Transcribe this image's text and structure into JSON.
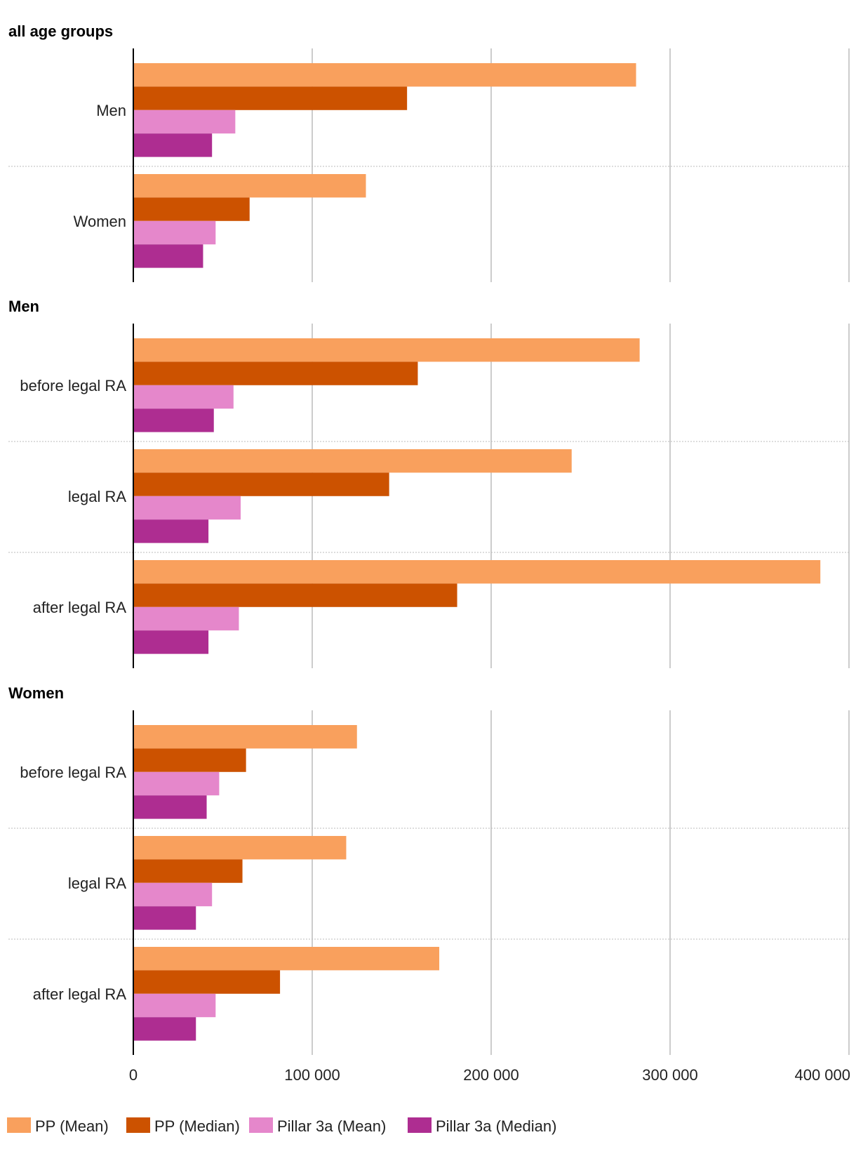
{
  "chart_data": {
    "type": "bar",
    "orientation": "horizontal",
    "xlim": [
      0,
      400000
    ],
    "x_ticks": [
      "0",
      "100 000",
      "200 000",
      "300 000",
      "400 000"
    ],
    "x_tick_values": [
      0,
      100000,
      200000,
      300000,
      400000
    ],
    "grid": true,
    "legend_placement": "bottom-left",
    "series": [
      {
        "name": "PP (Mean)",
        "color": "#F9A05D"
      },
      {
        "name": "PP (Median)",
        "color": "#CC5200"
      },
      {
        "name": "Pillar 3a (Mean)",
        "color": "#E587CB"
      },
      {
        "name": "Pillar 3a (Median)",
        "color": "#AE2D91"
      }
    ],
    "panels": [
      {
        "title": "all age groups",
        "categories": [
          {
            "label": "Men",
            "values": [
              281000,
              153000,
              57000,
              44000
            ]
          },
          {
            "label": "Women",
            "values": [
              130000,
              65000,
              46000,
              39000
            ]
          }
        ]
      },
      {
        "title": "Men",
        "categories": [
          {
            "label": "before legal RA",
            "values": [
              283000,
              159000,
              56000,
              45000
            ]
          },
          {
            "label": "legal RA",
            "values": [
              245000,
              143000,
              60000,
              42000
            ]
          },
          {
            "label": "after legal RA",
            "values": [
              384000,
              181000,
              59000,
              42000
            ]
          }
        ]
      },
      {
        "title": "Women",
        "categories": [
          {
            "label": "before legal RA",
            "values": [
              125000,
              63000,
              48000,
              41000
            ]
          },
          {
            "label": "legal RA",
            "values": [
              119000,
              61000,
              44000,
              35000
            ]
          },
          {
            "label": "after legal RA",
            "values": [
              171000,
              82000,
              46000,
              35000
            ]
          }
        ]
      }
    ]
  }
}
